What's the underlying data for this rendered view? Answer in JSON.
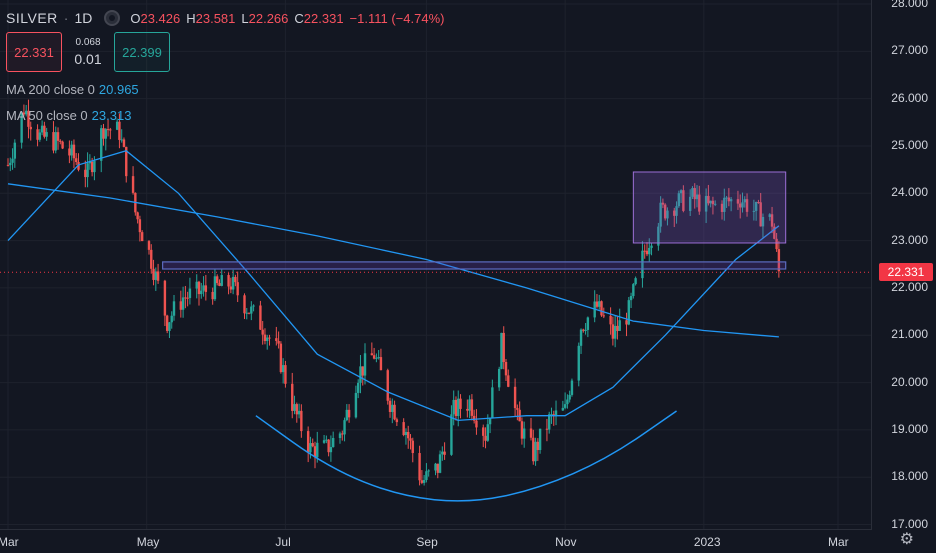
{
  "header": {
    "symbol": "SILVER",
    "timeframe": "1D",
    "open_label": "O",
    "open": "23.426",
    "high_label": "H",
    "high": "23.581",
    "low_label": "L",
    "low": "22.266",
    "close_label": "C",
    "close": "22.331",
    "change": "−1.111 (−4.74%)"
  },
  "trade": {
    "sell": "22.331",
    "spread_top": "0.068",
    "spread_bottom": "0.01",
    "buy": "22.399"
  },
  "indicators": {
    "ma200_label": "MA 200 close 0",
    "ma200_value": "20.965",
    "ma50_label": "MA 50 close 0",
    "ma50_value": "23.313"
  },
  "last_price_tag": "22.331",
  "colors": {
    "up": "#26a69a",
    "down": "#ef5350",
    "ma": "#2196f3",
    "box": "#7e57c2",
    "background": "#131722"
  },
  "icons": {
    "settings": "gear-icon"
  },
  "chart_data": {
    "type": "candlestick",
    "y_ticks": [
      "17.000",
      "18.000",
      "19.000",
      "20.000",
      "21.000",
      "22.000",
      "23.000",
      "24.000",
      "25.000",
      "26.000",
      "27.000",
      "28.000"
    ],
    "ylim": [
      16.8,
      28.0
    ],
    "x_ticks": [
      "Mar",
      "May",
      "Jul",
      "Sep",
      "Nov",
      "2023",
      "Mar"
    ],
    "x": [
      "2022-03",
      "2022-05",
      "2022-07",
      "2022-09",
      "2022-11",
      "2023-01",
      "2023-03"
    ],
    "close_path": [
      {
        "date": "2022-03-01",
        "close": 24.6
      },
      {
        "date": "2022-03-08",
        "close": 25.8
      },
      {
        "date": "2022-03-15",
        "close": 25.2
      },
      {
        "date": "2022-03-22",
        "close": 25.1
      },
      {
        "date": "2022-03-29",
        "close": 24.8
      },
      {
        "date": "2022-04-05",
        "close": 24.4
      },
      {
        "date": "2022-04-12",
        "close": 25.4
      },
      {
        "date": "2022-04-19",
        "close": 25.3
      },
      {
        "date": "2022-04-26",
        "close": 23.6
      },
      {
        "date": "2022-05-03",
        "close": 22.6
      },
      {
        "date": "2022-05-10",
        "close": 21.3
      },
      {
        "date": "2022-05-17",
        "close": 21.8
      },
      {
        "date": "2022-05-24",
        "close": 21.9
      },
      {
        "date": "2022-05-31",
        "close": 22.0
      },
      {
        "date": "2022-06-07",
        "close": 22.1
      },
      {
        "date": "2022-06-14",
        "close": 21.6
      },
      {
        "date": "2022-06-21",
        "close": 21.2
      },
      {
        "date": "2022-06-28",
        "close": 20.6
      },
      {
        "date": "2022-07-05",
        "close": 19.4
      },
      {
        "date": "2022-07-12",
        "close": 18.6
      },
      {
        "date": "2022-07-19",
        "close": 18.6
      },
      {
        "date": "2022-07-26",
        "close": 19.0
      },
      {
        "date": "2022-08-02",
        "close": 20.2
      },
      {
        "date": "2022-08-09",
        "close": 20.6
      },
      {
        "date": "2022-08-16",
        "close": 19.6
      },
      {
        "date": "2022-08-23",
        "close": 19.0
      },
      {
        "date": "2022-08-30",
        "close": 17.9
      },
      {
        "date": "2022-09-06",
        "close": 18.2
      },
      {
        "date": "2022-09-13",
        "close": 19.4
      },
      {
        "date": "2022-09-20",
        "close": 19.6
      },
      {
        "date": "2022-09-27",
        "close": 18.9
      },
      {
        "date": "2022-10-04",
        "close": 20.8
      },
      {
        "date": "2022-10-11",
        "close": 19.2
      },
      {
        "date": "2022-10-18",
        "close": 18.5
      },
      {
        "date": "2022-10-25",
        "close": 19.2
      },
      {
        "date": "2022-11-01",
        "close": 19.4
      },
      {
        "date": "2022-11-08",
        "close": 21.2
      },
      {
        "date": "2022-11-15",
        "close": 21.6
      },
      {
        "date": "2022-11-22",
        "close": 21.0
      },
      {
        "date": "2022-11-29",
        "close": 21.5
      },
      {
        "date": "2022-12-06",
        "close": 22.8
      },
      {
        "date": "2022-12-13",
        "close": 23.6
      },
      {
        "date": "2022-12-20",
        "close": 23.8
      },
      {
        "date": "2022-12-27",
        "close": 23.9
      },
      {
        "date": "2023-01-03",
        "close": 23.7
      },
      {
        "date": "2023-01-10",
        "close": 23.8
      },
      {
        "date": "2023-01-17",
        "close": 23.9
      },
      {
        "date": "2023-01-24",
        "close": 23.6
      },
      {
        "date": "2023-01-31",
        "close": 23.4
      },
      {
        "date": "2023-02-03",
        "close": 22.331
      }
    ],
    "ma200_path": [
      {
        "date": "2022-03-01",
        "value": 24.2
      },
      {
        "date": "2022-04-15",
        "value": 23.9
      },
      {
        "date": "2022-06-01",
        "value": 23.5
      },
      {
        "date": "2022-07-15",
        "value": 23.1
      },
      {
        "date": "2022-09-01",
        "value": 22.6
      },
      {
        "date": "2022-10-15",
        "value": 22.0
      },
      {
        "date": "2022-12-01",
        "value": 21.3
      },
      {
        "date": "2023-01-01",
        "value": 21.1
      },
      {
        "date": "2023-02-03",
        "value": 20.965
      }
    ],
    "ma50_path": [
      {
        "date": "2022-03-01",
        "value": 23.0
      },
      {
        "date": "2022-04-01",
        "value": 24.6
      },
      {
        "date": "2022-04-22",
        "value": 24.9
      },
      {
        "date": "2022-05-15",
        "value": 24.0
      },
      {
        "date": "2022-06-15",
        "value": 22.3
      },
      {
        "date": "2022-07-15",
        "value": 20.6
      },
      {
        "date": "2022-08-15",
        "value": 19.8
      },
      {
        "date": "2022-09-15",
        "value": 19.2
      },
      {
        "date": "2022-10-15",
        "value": 19.3
      },
      {
        "date": "2022-11-01",
        "value": 19.3
      },
      {
        "date": "2022-11-22",
        "value": 19.9
      },
      {
        "date": "2022-12-15",
        "value": 21.0
      },
      {
        "date": "2023-01-15",
        "value": 22.6
      },
      {
        "date": "2023-02-03",
        "value": 23.313
      }
    ],
    "annotations": {
      "consolidation_box": {
        "date_from": "2022-12-01",
        "date_to": "2023-02-06",
        "price_low": 22.95,
        "price_high": 24.45
      },
      "support_band": {
        "date_from": "2022-05-08",
        "date_to": "2023-02-06",
        "price_low": 22.4,
        "price_high": 22.55
      },
      "cup_arc": [
        {
          "date": "2022-06-18",
          "price": 19.3
        },
        {
          "date": "2022-07-20",
          "price": 18.2
        },
        {
          "date": "2022-08-20",
          "price": 17.6
        },
        {
          "date": "2022-09-20",
          "price": 17.45
        },
        {
          "date": "2022-10-20",
          "price": 17.75
        },
        {
          "date": "2022-11-20",
          "price": 18.4
        },
        {
          "date": "2022-12-20",
          "price": 19.4
        }
      ]
    }
  }
}
